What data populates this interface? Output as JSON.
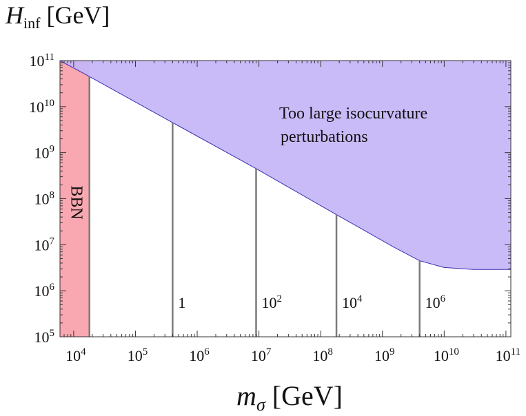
{
  "chart_data": {
    "type": "area",
    "xscale": "log",
    "yscale": "log",
    "xlim": [
      6000,
      120000000000
    ],
    "ylim": [
      100000,
      100000000000
    ],
    "xlabel": {
      "main": "m",
      "sub": "σ",
      "unit": "[GeV]"
    },
    "ylabel": {
      "main": "H",
      "sub": "inf",
      "unit": "[GeV]"
    },
    "x_ticks": [
      {
        "base": "10",
        "exp": "4",
        "value": 10000
      },
      {
        "base": "10",
        "exp": "5",
        "value": 100000
      },
      {
        "base": "10",
        "exp": "6",
        "value": 1000000
      },
      {
        "base": "10",
        "exp": "7",
        "value": 10000000
      },
      {
        "base": "10",
        "exp": "8",
        "value": 100000000
      },
      {
        "base": "10",
        "exp": "9",
        "value": 1000000000
      },
      {
        "base": "10",
        "exp": "10",
        "value": 10000000000
      },
      {
        "base": "10",
        "exp": "11",
        "value": 100000000000
      }
    ],
    "y_ticks": [
      {
        "base": "10",
        "exp": "5",
        "value": 100000
      },
      {
        "base": "10",
        "exp": "6",
        "value": 1000000
      },
      {
        "base": "10",
        "exp": "7",
        "value": 10000000
      },
      {
        "base": "10",
        "exp": "8",
        "value": 100000000
      },
      {
        "base": "10",
        "exp": "9",
        "value": 1000000000
      },
      {
        "base": "10",
        "exp": "10",
        "value": 10000000000
      },
      {
        "base": "10",
        "exp": "11",
        "value": 100000000000
      }
    ],
    "regions": [
      {
        "name": "BBN",
        "label": "BBN",
        "color": "#f9a7b0",
        "x_range": [
          6000,
          18000
        ]
      },
      {
        "name": "isocurvature",
        "label_lines": [
          "Too large isocurvature",
          "perturbations"
        ],
        "fill_color": "#c4b5f7",
        "edge_color": "#3a2fb0",
        "boundary": [
          {
            "x": 6000,
            "y": 100000000000
          },
          {
            "x": 18000,
            "y": 45000000000
          },
          {
            "x": 400000,
            "y": 4500000000
          },
          {
            "x": 9000000,
            "y": 450000000
          },
          {
            "x": 180000000,
            "y": 45000000
          },
          {
            "x": 1500000000,
            "y": 9000000
          },
          {
            "x": 4000000000,
            "y": 4500000
          },
          {
            "x": 10000000000,
            "y": 3200000
          },
          {
            "x": 30000000000,
            "y": 2900000
          },
          {
            "x": 120000000000,
            "y": 2900000
          }
        ]
      }
    ],
    "vertical_lines": [
      {
        "x": 18000,
        "y_top": 45000000000,
        "label": null
      },
      {
        "x": 400000,
        "y_top": 4500000000,
        "label": {
          "base": "1",
          "exp": ""
        }
      },
      {
        "x": 9000000,
        "y_top": 450000000,
        "label": {
          "base": "10",
          "exp": "2"
        }
      },
      {
        "x": 180000000,
        "y_top": 45000000,
        "label": {
          "base": "10",
          "exp": "4"
        }
      },
      {
        "x": 4000000000,
        "y_top": 4500000,
        "label": {
          "base": "10",
          "exp": "6"
        }
      }
    ],
    "label_y_value": 1000000,
    "grid": false,
    "legend": "none"
  }
}
